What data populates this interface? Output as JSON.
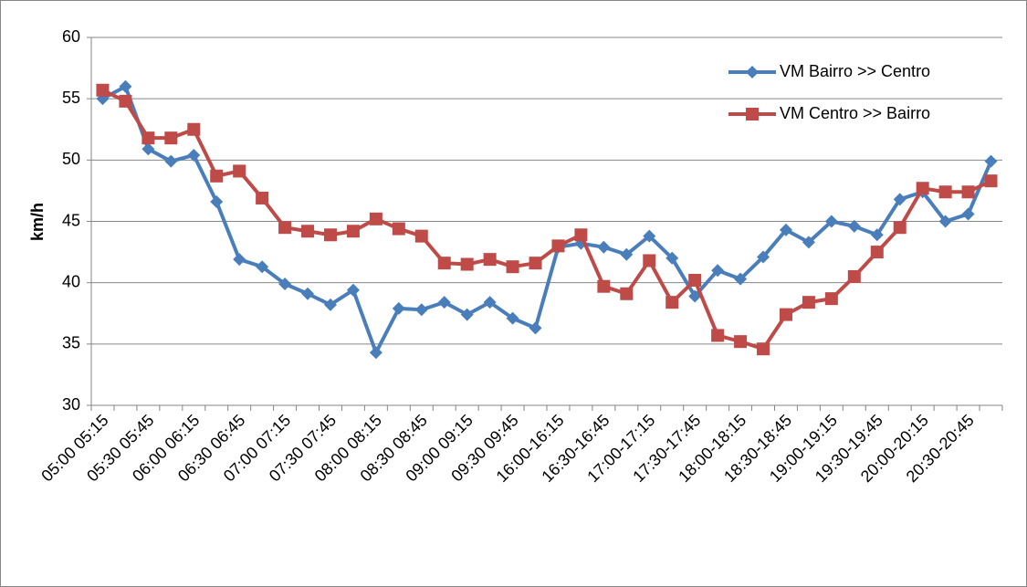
{
  "chart_data": {
    "type": "line",
    "y_label": "km/h",
    "categories": [
      "05:00 05:15",
      null,
      "05:30 05:45",
      null,
      "06:00 06:15",
      null,
      "06:30 06:45",
      null,
      "07:00 07:15",
      null,
      "07:30 07:45",
      null,
      "08:00 08:15",
      null,
      "08:30 08:45",
      null,
      "09:00 09:15",
      null,
      "09:30 09:45",
      null,
      "16:00-16:15",
      null,
      "16:30-16:45",
      null,
      "17:00-17:15",
      null,
      "17:30-17:45",
      null,
      "18:00-18:15",
      null,
      "18:30-18:45",
      null,
      "19:00-19:15",
      null,
      "19:30-19:45",
      null,
      "20:00-20:15",
      null,
      "20:30-20:45",
      null
    ],
    "series": [
      {
        "name": "VM Bairro >> Centro",
        "color": "#4a7ebb",
        "marker": "diamond",
        "values": [
          55.0,
          56.0,
          50.9,
          49.9,
          50.4,
          46.6,
          41.9,
          41.3,
          39.9,
          39.1,
          38.2,
          39.4,
          34.3,
          37.9,
          37.8,
          38.4,
          37.4,
          38.4,
          37.1,
          36.3,
          42.9,
          43.2,
          42.9,
          42.3,
          43.8,
          42.0,
          38.9,
          41.0,
          40.3,
          42.1,
          44.3,
          43.3,
          45.0,
          44.6,
          43.9,
          46.8,
          47.4,
          45.0,
          45.6,
          49.9
        ]
      },
      {
        "name": "VM Centro >> Bairro",
        "color": "#be4b48",
        "marker": "square",
        "values": [
          55.7,
          54.8,
          51.8,
          51.8,
          52.5,
          48.7,
          49.1,
          46.9,
          44.5,
          44.2,
          43.9,
          44.2,
          45.2,
          44.4,
          43.8,
          41.6,
          41.5,
          41.9,
          41.3,
          41.6,
          43.0,
          43.9,
          39.7,
          39.1,
          41.8,
          38.4,
          40.2,
          35.7,
          35.2,
          34.6,
          37.4,
          38.4,
          38.7,
          40.5,
          42.5,
          44.5,
          47.7,
          47.4,
          47.4,
          48.3
        ]
      }
    ],
    "ylim": [
      30,
      60
    ],
    "yticks": [
      30,
      35,
      40,
      45,
      50,
      55,
      60
    ],
    "grid": true,
    "legend": "upper-right"
  }
}
